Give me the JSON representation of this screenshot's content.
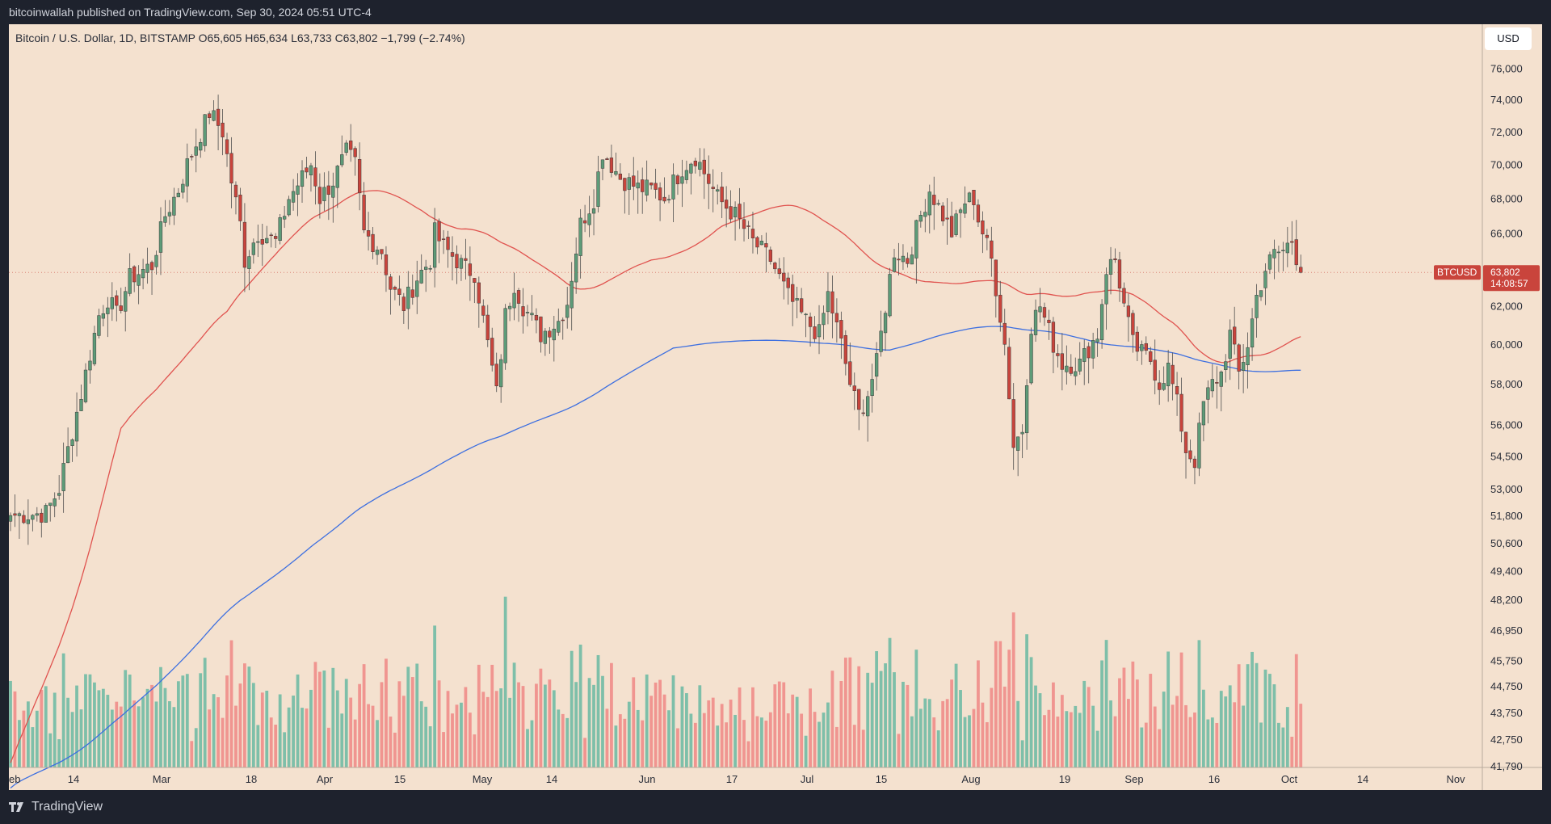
{
  "header": {
    "publisher_line": "bitcoinwallah published on TradingView.com, Sep 30, 2024 05:51 UTC-4"
  },
  "footer": {
    "brand": "TradingView"
  },
  "controls": {
    "currency_button": "USD"
  },
  "chart_data": {
    "type": "candlestick",
    "legend_line": "Bitcoin / U.S. Dollar, 1D, BITSTAMP O65,605 H65,634 L63,733 C63,802 −1,799 (−2.74%)",
    "symbol": "BTCUSD",
    "last_price": "63,802",
    "countdown": "14:08:57",
    "x_tick_labels": [
      "eb",
      "14",
      "Mar",
      "18",
      "Apr",
      "15",
      "May",
      "14",
      "Jun",
      "17",
      "Jul",
      "15",
      "Aug",
      "19",
      "Sep",
      "16",
      "Oct",
      "14",
      "Nov"
    ],
    "y_tick_labels": [
      "76,000",
      "74,000",
      "72,000",
      "70,000",
      "68,000",
      "66,000",
      "64,000",
      "62,000",
      "60,000",
      "58,000",
      "56,000",
      "54,500",
      "53,000",
      "51,800",
      "50,600",
      "49,400",
      "48,200",
      "46,950",
      "45,750",
      "44,750",
      "43,750",
      "42,750",
      "41,790"
    ],
    "y_tick_values": [
      76000,
      74000,
      72000,
      70000,
      68000,
      66000,
      64000,
      62000,
      60000,
      58000,
      56000,
      54500,
      53000,
      51800,
      50600,
      49400,
      48200,
      46950,
      45750,
      44750,
      43750,
      42750,
      41790
    ],
    "y_scale": "log",
    "ylim": [
      41790,
      78500
    ],
    "grid": false,
    "colors": {
      "up": "#5d9b78",
      "down": "#c9443c",
      "ma_short": "#e0534f",
      "ma_long": "#3d6fe0",
      "vol_up": "#7ebfa9",
      "vol_down": "#f09590",
      "background": "#f4e1cf"
    },
    "anchors": [
      [
        0,
        51800
      ],
      [
        8,
        51900
      ],
      [
        11,
        53000
      ],
      [
        16,
        57500
      ],
      [
        20,
        61500
      ],
      [
        22,
        62400
      ],
      [
        24,
        61500
      ],
      [
        27,
        63500
      ],
      [
        32,
        64200
      ],
      [
        35,
        67000
      ],
      [
        38,
        68500
      ],
      [
        40,
        70000
      ],
      [
        44,
        72500
      ],
      [
        45,
        73200
      ],
      [
        48,
        72000
      ],
      [
        50,
        69000
      ],
      [
        52,
        66500
      ],
      [
        53,
        64500
      ],
      [
        56,
        66000
      ],
      [
        58,
        65800
      ],
      [
        60,
        65500
      ],
      [
        63,
        68000
      ],
      [
        68,
        70000
      ],
      [
        70,
        68000
      ],
      [
        73,
        69000
      ],
      [
        76,
        70700
      ],
      [
        78,
        70000
      ],
      [
        80,
        66000
      ],
      [
        84,
        65000
      ],
      [
        86,
        63000
      ],
      [
        89,
        62000
      ],
      [
        92,
        63500
      ],
      [
        95,
        64500
      ],
      [
        96,
        66000
      ],
      [
        98,
        65200
      ],
      [
        103,
        64000
      ],
      [
        105,
        63800
      ],
      [
        108,
        60000
      ],
      [
        110,
        57500
      ],
      [
        112,
        61500
      ],
      [
        114,
        63200
      ],
      [
        116,
        62000
      ],
      [
        120,
        60500
      ],
      [
        124,
        61200
      ],
      [
        126,
        62200
      ],
      [
        129,
        66500
      ],
      [
        132,
        68000
      ],
      [
        134,
        70800
      ],
      [
        138,
        69200
      ],
      [
        142,
        68600
      ],
      [
        145,
        68500
      ],
      [
        148,
        68000
      ],
      [
        152,
        69800
      ],
      [
        155,
        70500
      ],
      [
        157,
        69500
      ],
      [
        160,
        68000
      ],
      [
        164,
        67000
      ],
      [
        168,
        65500
      ],
      [
        172,
        64500
      ],
      [
        176,
        62500
      ],
      [
        180,
        61200
      ],
      [
        183,
        60500
      ],
      [
        185,
        62600
      ],
      [
        188,
        60000
      ],
      [
        190,
        58000
      ],
      [
        192,
        56500
      ],
      [
        194,
        57500
      ],
      [
        196,
        59000
      ],
      [
        198,
        62000
      ],
      [
        200,
        65000
      ],
      [
        203,
        64500
      ],
      [
        206,
        67000
      ],
      [
        208,
        68500
      ],
      [
        210,
        67500
      ],
      [
        213,
        66000
      ],
      [
        216,
        67800
      ],
      [
        218,
        68000
      ],
      [
        219,
        66800
      ],
      [
        222,
        64500
      ],
      [
        225,
        60000
      ],
      [
        227,
        55000
      ],
      [
        229,
        55800
      ],
      [
        231,
        61000
      ],
      [
        233,
        62000
      ],
      [
        236,
        60000
      ],
      [
        238,
        59000
      ],
      [
        242,
        59000
      ],
      [
        244,
        59800
      ],
      [
        246,
        60500
      ],
      [
        248,
        64000
      ],
      [
        250,
        64500
      ],
      [
        252,
        62000
      ],
      [
        254,
        60000
      ],
      [
        256,
        59500
      ],
      [
        258,
        59200
      ],
      [
        260,
        58000
      ],
      [
        262,
        58800
      ],
      [
        264,
        57000
      ],
      [
        266,
        54800
      ],
      [
        268,
        54300
      ],
      [
        270,
        57000
      ],
      [
        272,
        58000
      ],
      [
        274,
        58500
      ],
      [
        276,
        60500
      ],
      [
        278,
        58500
      ],
      [
        280,
        60000
      ],
      [
        282,
        62500
      ],
      [
        284,
        64000
      ],
      [
        286,
        64800
      ],
      [
        288,
        65000
      ],
      [
        290,
        65600
      ],
      [
        292,
        63802
      ]
    ],
    "notes": "Daily BTCUSD candles Feb–Sep 2024 with two moving averages (red shorter MA, blue longer MA) and volume bars at the bottom; x index in trading days from left edge."
  }
}
